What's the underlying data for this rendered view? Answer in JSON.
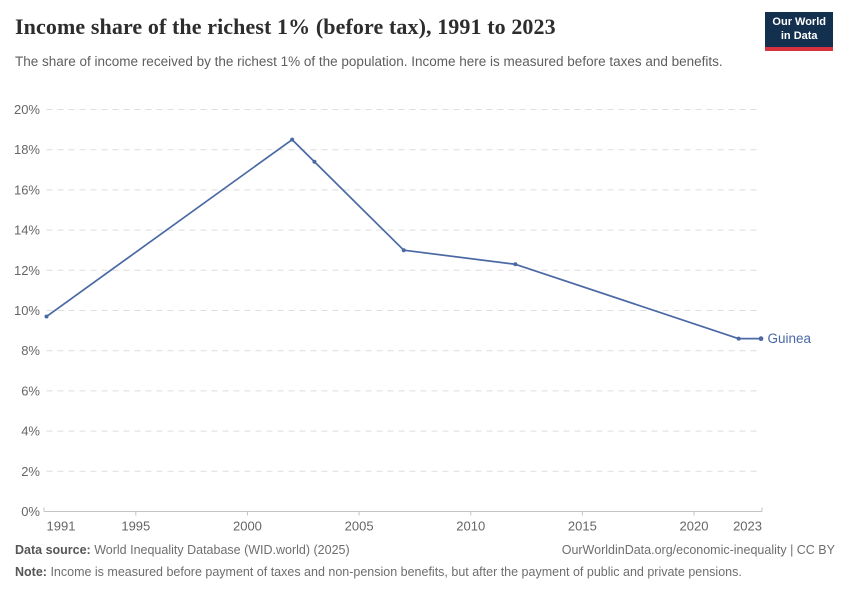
{
  "header": {
    "title": "Income share of the richest 1% (before tax), 1991 to 2023",
    "subtitle": "The share of income received by the richest 1% of the population. Income here is measured before taxes and benefits.",
    "logo": {
      "line1": "Our World",
      "line2": "in Data"
    }
  },
  "chart_data": {
    "type": "line",
    "title": "Income share of the richest 1% (before tax), 1991 to 2023",
    "xlabel": "",
    "ylabel": "",
    "xlim": [
      1991,
      2023
    ],
    "ylim": [
      0,
      20
    ],
    "x_ticks": [
      1991,
      1995,
      2000,
      2005,
      2010,
      2015,
      2020,
      2023
    ],
    "y_ticks": [
      0,
      2,
      4,
      6,
      8,
      10,
      12,
      14,
      16,
      18,
      20
    ],
    "y_tick_suffix": "%",
    "grid": "horizontal-dashed",
    "legend_position": "end-of-line-label",
    "series": [
      {
        "name": "Guinea",
        "color": "#4A69A4",
        "points": [
          {
            "x": 1991,
            "y": 9.7
          },
          {
            "x": 2002,
            "y": 18.5
          },
          {
            "x": 2003,
            "y": 17.4
          },
          {
            "x": 2007,
            "y": 13.0
          },
          {
            "x": 2012,
            "y": 12.3
          },
          {
            "x": 2022,
            "y": 8.6
          },
          {
            "x": 2023,
            "y": 8.6
          }
        ]
      }
    ]
  },
  "footer": {
    "datasource_label": "Data source:",
    "datasource_value": "World Inequality Database (WID.world) (2025)",
    "link": "OurWorldinData.org/economic-inequality | CC BY",
    "note_label": "Note:",
    "note_value": "Income is measured before payment of taxes and non-pension benefits, but after the payment of public and private pensions."
  },
  "colors": {
    "title": "#2d2d2d",
    "subtitle": "#5e5e5e",
    "axis_text": "#666666",
    "axis_line": "#c4c4c4",
    "gridline": "#dedede",
    "line": "#4A69A4",
    "logo_bg": "#14304F",
    "logo_stripe": "#D7333E"
  }
}
